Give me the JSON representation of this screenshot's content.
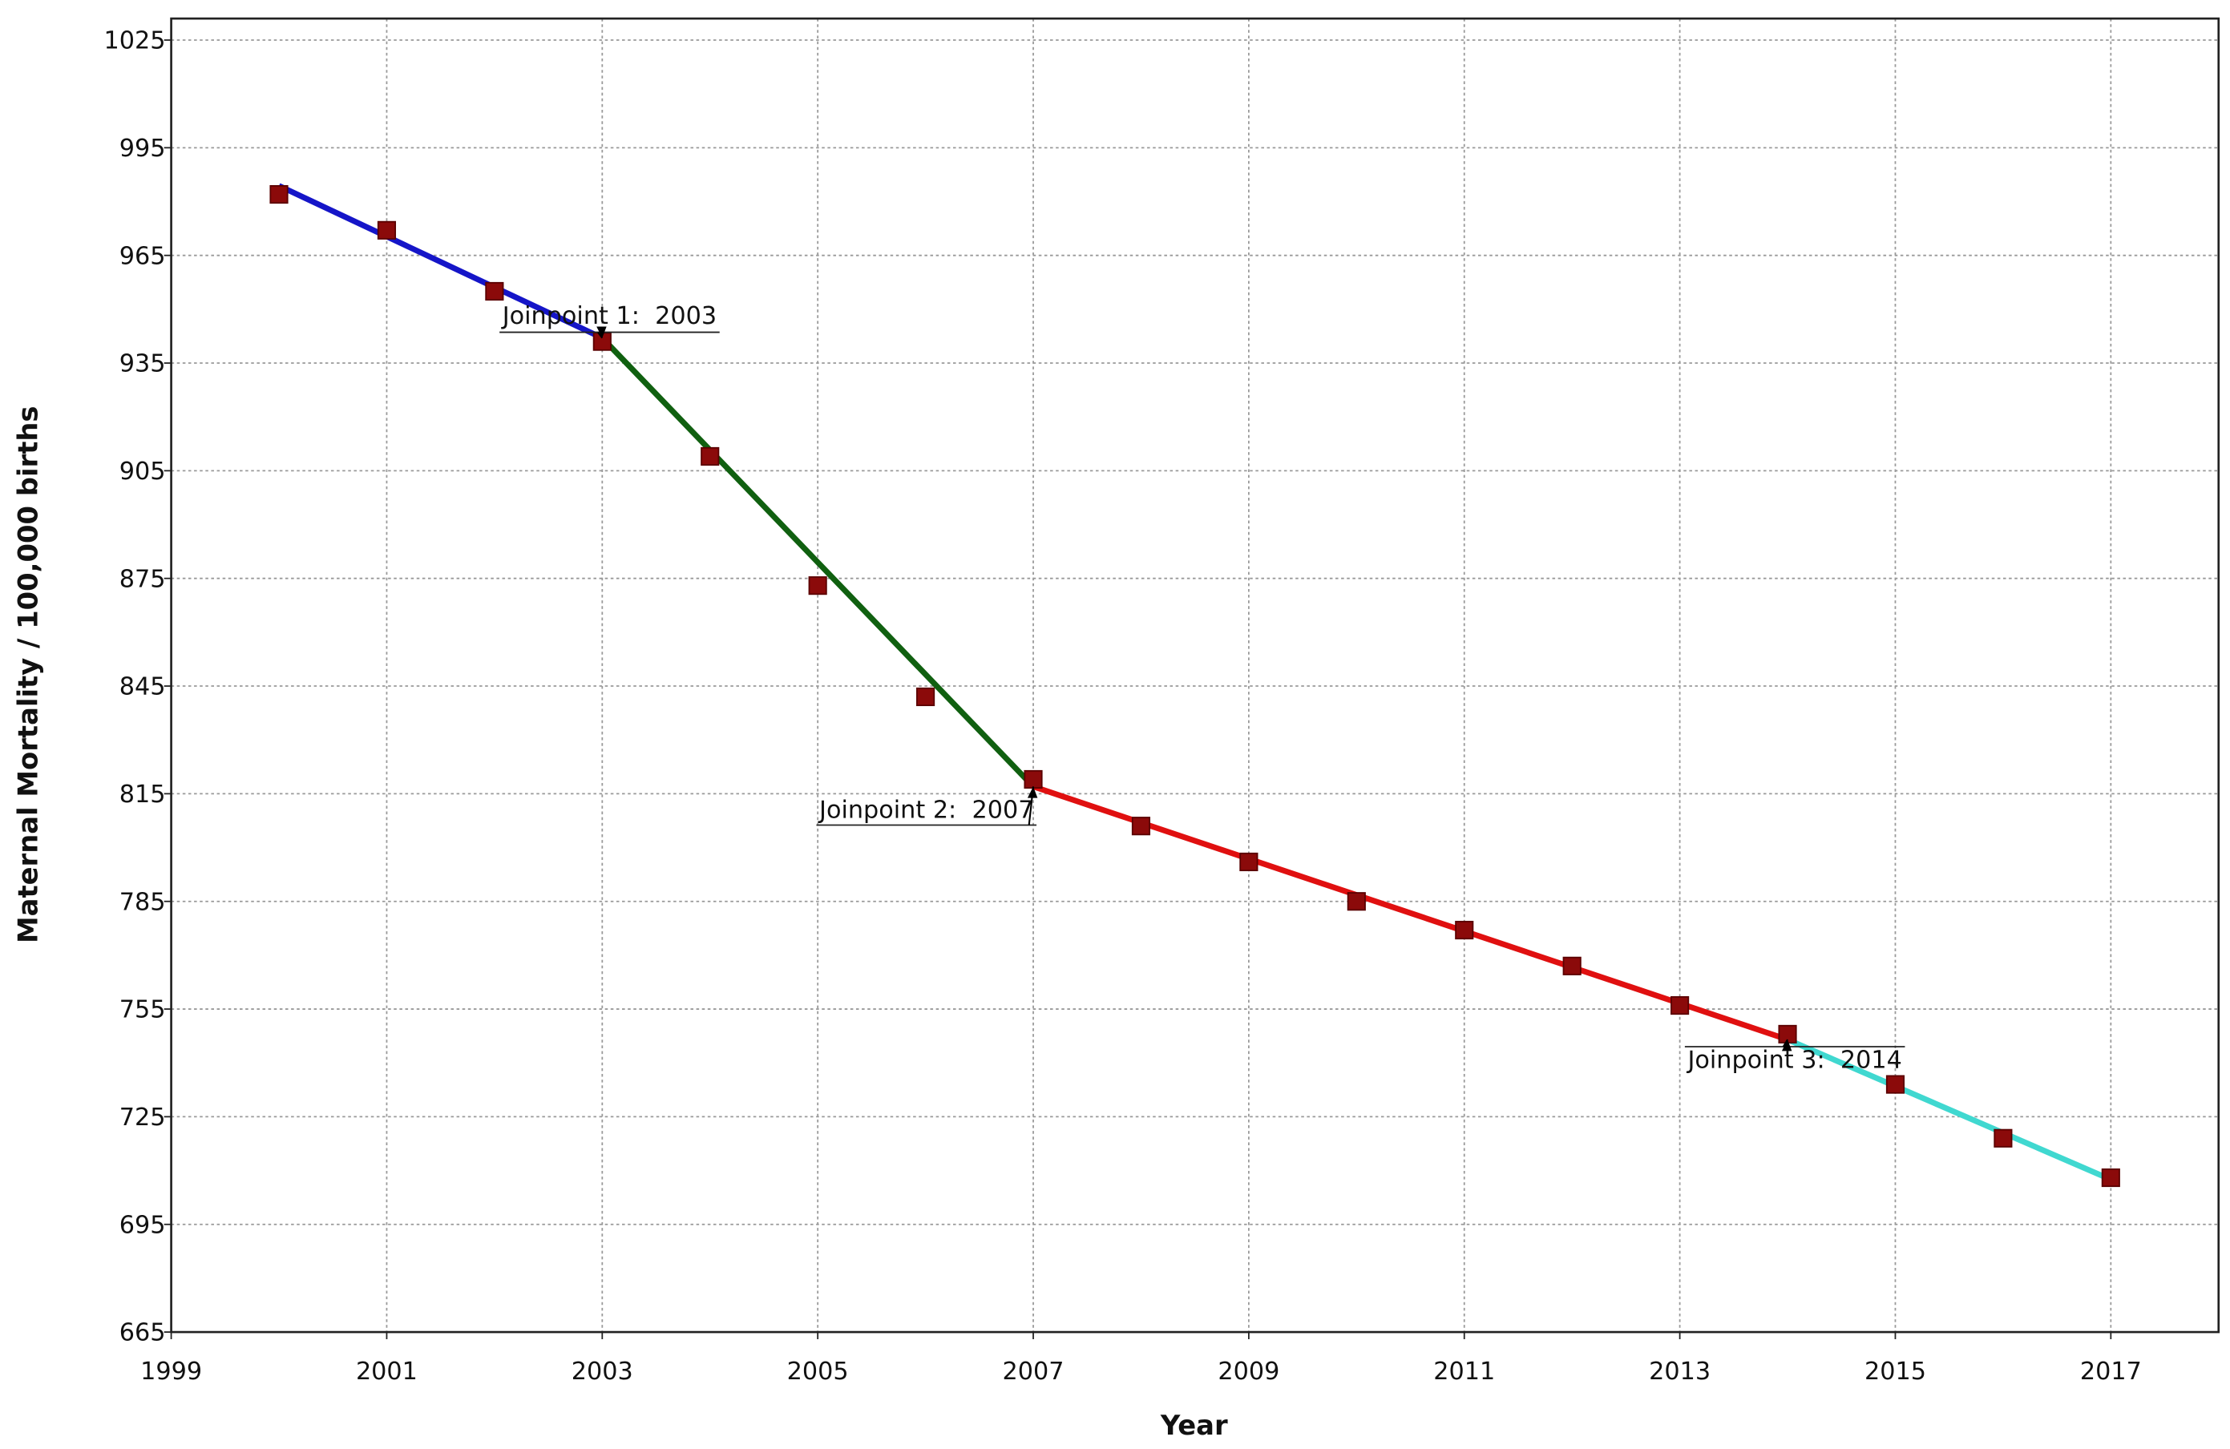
{
  "chart_data": {
    "type": "line",
    "x_label": "Year",
    "y_label": "Maternal Mortality / 100,000 births",
    "xlim": [
      1999,
      2018
    ],
    "xticks": [
      1999,
      2001,
      2003,
      2005,
      2007,
      2009,
      2011,
      2013,
      2015,
      2017
    ],
    "ylim": [
      665,
      1031
    ],
    "yticks": [
      665,
      695,
      725,
      755,
      785,
      815,
      845,
      875,
      905,
      935,
      965,
      995,
      1025
    ],
    "grid": true,
    "series": [
      {
        "type": "scatter",
        "color": "#8b0a0a",
        "x": [
          2000,
          2001,
          2002,
          2003,
          2004,
          2005,
          2006,
          2007,
          2008,
          2009,
          2010,
          2011,
          2012,
          2013,
          2014,
          2015,
          2016,
          2017
        ],
        "values": [
          982,
          972,
          955,
          941,
          909,
          873,
          842,
          819,
          806,
          796,
          785,
          777,
          767,
          756,
          748,
          734,
          719,
          708
        ]
      },
      {
        "type": "line",
        "color": "#1515c8",
        "x": [
          2000,
          2003
        ],
        "values": [
          984.4,
          942
        ]
      },
      {
        "type": "line",
        "color": "#106010",
        "x": [
          2003,
          2007
        ],
        "values": [
          942,
          817
        ]
      },
      {
        "type": "line",
        "color": "#e01010",
        "x": [
          2007,
          2014
        ],
        "values": [
          817,
          746.5
        ]
      },
      {
        "type": "line",
        "color": "#40d8d0",
        "x": [
          2014,
          2017
        ],
        "values": [
          746.5,
          707.5
        ]
      }
    ],
    "annotations": [
      "Joinpoint 1:  2003",
      "Joinpoint 2:  2007",
      "Joinpoint 3:  2014"
    ]
  }
}
